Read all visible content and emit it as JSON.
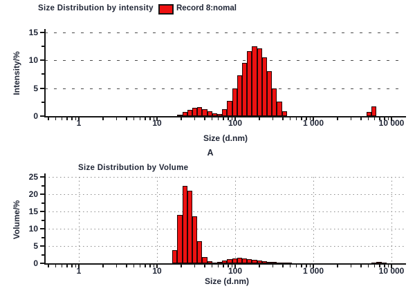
{
  "page": {
    "panel_label": "A"
  },
  "colors": {
    "bar_fill": "#ee1111",
    "bar_border": "#1c0606",
    "axis": "#141414",
    "text": "#202636"
  },
  "x_axis": {
    "label": "Size (d.nm)",
    "tick_labels": [
      "1",
      "10",
      "100",
      "1 000",
      "10 000"
    ],
    "tick_values": [
      1,
      10,
      100,
      1000,
      10000
    ],
    "scale": "log",
    "range_nm": [
      0.4,
      13000
    ]
  },
  "chart_data": [
    {
      "type": "bar",
      "title": "Size Distribution by intensity",
      "legend": "Record 8:nomal",
      "ylabel": "Intensity/%",
      "xlabel": "Size (d.nm)",
      "ylim": [
        0,
        15
      ],
      "y_tick_labels": [
        "0",
        "5",
        "10",
        "15"
      ],
      "grid": "horizontal-dashed",
      "bars": [
        [
          18.17,
          0.3
        ],
        [
          21.04,
          0.7
        ],
        [
          24.36,
          1.1
        ],
        [
          28.21,
          1.5
        ],
        [
          32.67,
          1.6
        ],
        [
          37.84,
          1.3
        ],
        [
          43.82,
          0.9
        ],
        [
          50.75,
          0.5
        ],
        [
          58.77,
          0.4
        ],
        [
          68.06,
          1.2
        ],
        [
          78.82,
          2.7
        ],
        [
          91.28,
          5.0
        ],
        [
          105.7,
          7.3
        ],
        [
          122.4,
          9.6
        ],
        [
          141.8,
          11.6
        ],
        [
          164.2,
          12.5
        ],
        [
          190.1,
          12.1
        ],
        [
          220.2,
          10.5
        ],
        [
          255.0,
          8.1
        ],
        [
          295.3,
          4.9
        ],
        [
          342.0,
          2.6
        ],
        [
          396.1,
          0.9
        ],
        [
          4801,
          0.7
        ],
        [
          5560,
          1.7
        ]
      ]
    },
    {
      "type": "bar",
      "title": "Size Distribution by Volume",
      "ylabel": "Volume/%",
      "xlabel": "Size (d.nm)",
      "ylim": [
        0,
        25
      ],
      "y_tick_labels": [
        "0",
        "5",
        "10",
        "15",
        "20",
        "25"
      ],
      "grid": "dotted-horizontal-and-vertical",
      "bars": [
        [
          15.69,
          3.8
        ],
        [
          18.17,
          14.0
        ],
        [
          21.04,
          22.4
        ],
        [
          24.36,
          21.0
        ],
        [
          28.21,
          13.7
        ],
        [
          32.67,
          6.5
        ],
        [
          37.84,
          1.8
        ],
        [
          43.82,
          0.6
        ],
        [
          50.75,
          0.3
        ],
        [
          58.77,
          0.5
        ],
        [
          68.06,
          0.9
        ],
        [
          78.82,
          1.2
        ],
        [
          91.28,
          1.5
        ],
        [
          105.7,
          1.6
        ],
        [
          122.4,
          1.5
        ],
        [
          141.8,
          1.3
        ],
        [
          164.2,
          1.1
        ],
        [
          190.1,
          0.9
        ],
        [
          220.2,
          0.7
        ],
        [
          255.0,
          0.5
        ],
        [
          295.3,
          0.35
        ],
        [
          342.0,
          0.25
        ],
        [
          396.1,
          0.15
        ],
        [
          458.7,
          0.1
        ],
        [
          5560,
          0.3
        ],
        [
          6439,
          0.4
        ],
        [
          7456,
          0.3
        ]
      ]
    }
  ]
}
